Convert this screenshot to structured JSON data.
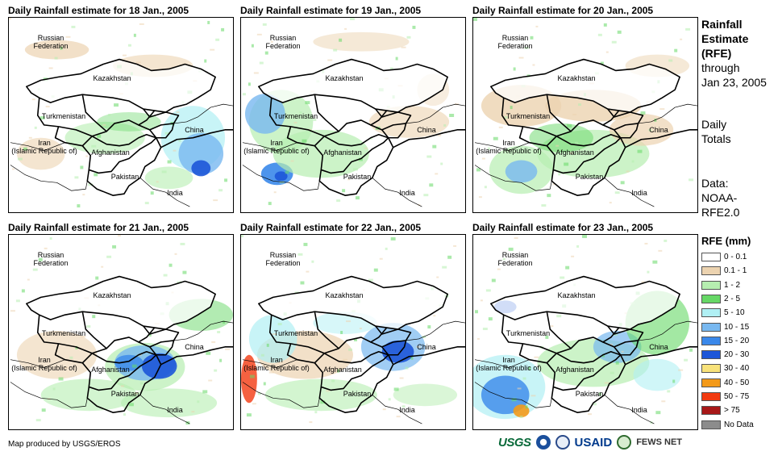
{
  "panels": [
    {
      "title": "Daily Rainfall estimate for 18 Jan., 2005",
      "rain": "mixed"
    },
    {
      "title": "Daily Rainfall estimate for 19 Jan., 2005",
      "rain": "west"
    },
    {
      "title": "Daily Rainfall estimate for 20 Jan., 2005",
      "rain": "beige"
    },
    {
      "title": "Daily Rainfall estimate for 21 Jan., 2005",
      "rain": "afghan"
    },
    {
      "title": "Daily Rainfall estimate for 22 Jan., 2005",
      "rain": "east"
    },
    {
      "title": "Daily Rainfall estimate for 23 Jan., 2005",
      "rain": "heavy"
    }
  ],
  "country_labels": {
    "russia": "Russian\nFederation",
    "kazakhstan": "Kazakhstan",
    "turkmenistan": "Turkmenistan",
    "iran": "Iran\n(Islamic Republic of)",
    "afghanistan": "Afghanistan",
    "pakistan": "Pakistan",
    "china": "China",
    "india": "India"
  },
  "sidebar": {
    "title_line1": "Rainfall",
    "title_line2": "Estimate",
    "title_line3": "(RFE)",
    "through": "through",
    "date": "Jan 23, 2005",
    "daily": "Daily",
    "totals": "Totals",
    "data_label": "Data:",
    "data_source1": "NOAA-",
    "data_source2": "RFE2.0"
  },
  "legend": {
    "title": "RFE (mm)",
    "items": [
      {
        "label": "0 - 0.1",
        "color": "#ffffff"
      },
      {
        "label": "0.1 - 1",
        "color": "#ecd3b0"
      },
      {
        "label": "1 - 2",
        "color": "#b6eeb0"
      },
      {
        "label": "2 - 5",
        "color": "#66d866"
      },
      {
        "label": "5 - 10",
        "color": "#b0f0f4"
      },
      {
        "label": "10 - 15",
        "color": "#78b8f0"
      },
      {
        "label": "15 - 20",
        "color": "#3a88ea"
      },
      {
        "label": "20 - 30",
        "color": "#1d56d8"
      },
      {
        "label": "30 - 40",
        "color": "#f8e27a"
      },
      {
        "label": "40 - 50",
        "color": "#f39a1a"
      },
      {
        "label": "50 - 75",
        "color": "#f23a10"
      },
      {
        "label": "> 75",
        "color": "#a81818"
      },
      {
        "label": "No Data",
        "color": "#8c8c8c"
      }
    ]
  },
  "credit": "Map produced by USGS/EROS",
  "logos": {
    "usgs": "USGS",
    "noaa": "NOAA",
    "dhs": "DHS",
    "usaid": "USAID",
    "fews": "FEWS NET"
  }
}
